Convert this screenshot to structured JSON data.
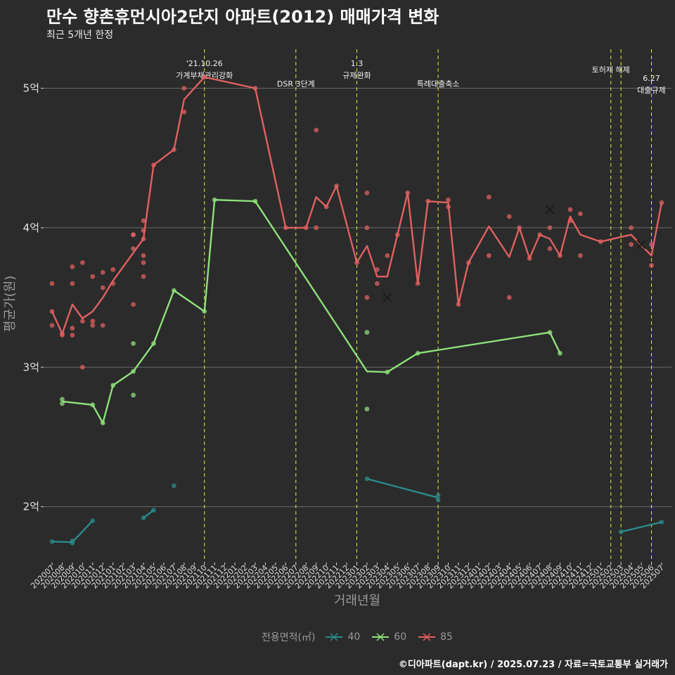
{
  "title": "만수 향촌휴먼시아2단지 아파트(2012) 매매가격 변화",
  "subtitle": "최근 5개년 한정",
  "credit": "©디아파트(dapt.kr) / 2025.07.23 / 자료=국토교통부 실거래가",
  "chart_data": {
    "type": "line",
    "xlabel": "거래년월",
    "ylabel": "평균가(원)",
    "x_categories": [
      "202007",
      "202008",
      "202009",
      "202010",
      "202011",
      "202012",
      "202101",
      "202102",
      "202103",
      "202104",
      "202105",
      "202106",
      "202107",
      "202108",
      "202109",
      "202110",
      "202111",
      "202112",
      "202201",
      "202202",
      "202203",
      "202204",
      "202205",
      "202206",
      "202207",
      "202208",
      "202209",
      "202210",
      "202211",
      "202212",
      "202301",
      "202302",
      "202303",
      "202304",
      "202305",
      "202306",
      "202307",
      "202308",
      "202309",
      "202310",
      "202311",
      "202312",
      "202401",
      "202402",
      "202403",
      "202404",
      "202405",
      "202406",
      "202407",
      "202408",
      "202409",
      "202410",
      "202411",
      "202412",
      "202501",
      "202502",
      "202503",
      "202504",
      "202505",
      "202506",
      "202507"
    ],
    "y_ticks": [
      {
        "value": 2,
        "label": "2억"
      },
      {
        "value": 3,
        "label": "3억"
      },
      {
        "value": 4,
        "label": "4억"
      },
      {
        "value": 5,
        "label": "5억"
      }
    ],
    "ylim": [
      1.6,
      5.32
    ],
    "y_unit": "억원",
    "grid": true,
    "legend": {
      "title": "전용면적(㎡)",
      "position": "bottom"
    },
    "annotations": [
      {
        "x": "202110",
        "label": "'21.10.26\n가계부채관리강화"
      },
      {
        "x": "202207",
        "label": "DSR 3단계"
      },
      {
        "x": "202301",
        "label": "1.3\n규제완화"
      },
      {
        "x": "202309",
        "label": "특례대출축소"
      },
      {
        "x": "202502",
        "label": "토허제 해제"
      },
      {
        "x": "202503",
        "label": ""
      },
      {
        "x": "202506",
        "label": "6.27\n대출규제"
      }
    ],
    "series": [
      {
        "name": "40",
        "color": "#2a8a8a",
        "segments": [
          [
            [
              "202007",
              1.75
            ],
            [
              "202009",
              1.745
            ],
            [
              "202011",
              1.9
            ]
          ],
          [
            [
              "202104",
              1.92
            ],
            [
              "202105",
              1.975
            ]
          ],
          [
            [
              "202302",
              2.2
            ],
            [
              "202309",
              2.065
            ]
          ],
          [
            [
              "202503",
              1.82
            ],
            [
              "202507",
              1.89
            ]
          ]
        ],
        "points": [
          [
            "202007",
            1.75
          ],
          [
            "202009",
            1.74
          ],
          [
            "202009",
            1.755
          ],
          [
            "202011",
            1.9
          ],
          [
            "202104",
            1.92
          ],
          [
            "202105",
            1.975
          ],
          [
            "202107",
            2.15
          ],
          [
            "202302",
            2.2
          ],
          [
            "202309",
            2.05
          ],
          [
            "202309",
            2.08
          ],
          [
            "202503",
            1.82
          ],
          [
            "202507",
            1.89
          ]
        ],
        "cancelled": []
      },
      {
        "name": "60",
        "color": "#8ee07a",
        "segments": [
          [
            [
              "202008",
              2.755
            ],
            [
              "202011",
              2.73
            ],
            [
              "202012",
              2.6
            ],
            [
              "202101",
              2.87
            ],
            [
              "202103",
              2.97
            ],
            [
              "202105",
              3.17
            ],
            [
              "202107",
              3.55
            ],
            [
              "202110",
              3.4
            ],
            [
              "202111",
              4.2
            ],
            [
              "202203",
              4.19
            ],
            [
              "202302",
              2.97
            ],
            [
              "202304",
              2.965
            ],
            [
              "202307",
              3.1
            ],
            [
              "202408",
              3.25
            ],
            [
              "202409",
              3.1
            ]
          ]
        ],
        "points": [
          [
            "202008",
            2.74
          ],
          [
            "202008",
            2.77
          ],
          [
            "202011",
            2.73
          ],
          [
            "202012",
            2.6
          ],
          [
            "202101",
            2.87
          ],
          [
            "202103",
            2.97
          ],
          [
            "202103",
            2.8
          ],
          [
            "202103",
            3.17
          ],
          [
            "202105",
            3.17
          ],
          [
            "202107",
            3.55
          ],
          [
            "202110",
            3.4
          ],
          [
            "202111",
            4.2
          ],
          [
            "202203",
            4.19
          ],
          [
            "202302",
            3.25
          ],
          [
            "202302",
            2.7
          ],
          [
            "202304",
            2.965
          ],
          [
            "202307",
            3.1
          ],
          [
            "202408",
            3.25
          ],
          [
            "202409",
            3.1
          ]
        ],
        "cancelled": []
      },
      {
        "name": "85",
        "color": "#e06060",
        "segments": [
          [
            [
              "202007",
              3.4
            ],
            [
              "202008",
              3.24
            ],
            [
              "202009",
              3.45
            ],
            [
              "202010",
              3.35
            ],
            [
              "202011",
              3.4
            ],
            [
              "202012",
              3.5
            ],
            [
              "202101",
              3.62
            ],
            [
              "202104",
              3.92
            ],
            [
              "202105",
              4.45
            ],
            [
              "202107",
              4.56
            ],
            [
              "202108",
              4.92
            ],
            [
              "202110",
              5.08
            ],
            [
              "202203",
              5.0
            ],
            [
              "202206",
              4.0
            ],
            [
              "202208",
              4.0
            ],
            [
              "202209",
              4.22
            ],
            [
              "202210",
              4.15
            ],
            [
              "202211",
              4.3
            ],
            [
              "202301",
              3.75
            ],
            [
              "202302",
              3.87
            ],
            [
              "202303",
              3.65
            ],
            [
              "202304",
              3.65
            ],
            [
              "202305",
              3.95
            ],
            [
              "202306",
              4.25
            ],
            [
              "202307",
              3.6
            ],
            [
              "202308",
              4.19
            ],
            [
              "202310",
              4.18
            ],
            [
              "202311",
              3.45
            ],
            [
              "202312",
              3.75
            ],
            [
              "202402",
              4.01
            ],
            [
              "202404",
              3.79
            ],
            [
              "202405",
              4.0
            ],
            [
              "202406",
              3.78
            ],
            [
              "202407",
              3.95
            ],
            [
              "202408",
              3.92
            ],
            [
              "202409",
              3.8
            ],
            [
              "202410",
              4.08
            ],
            [
              "202411",
              3.95
            ],
            [
              "202501",
              3.9
            ],
            [
              "202504",
              3.95
            ],
            [
              "202506",
              3.8
            ],
            [
              "202507",
              4.18
            ]
          ]
        ],
        "points": [
          [
            "202007",
            3.6
          ],
          [
            "202007",
            3.4
          ],
          [
            "202007",
            3.3
          ],
          [
            "202008",
            3.24
          ],
          [
            "202008",
            3.23
          ],
          [
            "202009",
            3.72
          ],
          [
            "202009",
            3.6
          ],
          [
            "202009",
            3.28
          ],
          [
            "202009",
            3.23
          ],
          [
            "202010",
            3.75
          ],
          [
            "202010",
            3.33
          ],
          [
            "202010",
            3.0
          ],
          [
            "202011",
            3.65
          ],
          [
            "202011",
            3.33
          ],
          [
            "202011",
            3.3
          ],
          [
            "202012",
            3.68
          ],
          [
            "202012",
            3.57
          ],
          [
            "202012",
            3.3
          ],
          [
            "202101",
            3.7
          ],
          [
            "202101",
            3.6
          ],
          [
            "202103",
            3.95
          ],
          [
            "202103",
            3.95
          ],
          [
            "202103",
            3.85
          ],
          [
            "202103",
            3.45
          ],
          [
            "202104",
            4.05
          ],
          [
            "202104",
            3.98
          ],
          [
            "202104",
            3.92
          ],
          [
            "202104",
            3.8
          ],
          [
            "202104",
            3.75
          ],
          [
            "202104",
            3.65
          ],
          [
            "202105",
            4.45
          ],
          [
            "202107",
            4.56
          ],
          [
            "202108",
            5.0
          ],
          [
            "202108",
            4.83
          ],
          [
            "202110",
            5.08
          ],
          [
            "202203",
            5.0
          ],
          [
            "202206",
            4.0
          ],
          [
            "202208",
            4.0
          ],
          [
            "202209",
            4.7
          ],
          [
            "202209",
            4.0
          ],
          [
            "202210",
            4.15
          ],
          [
            "202211",
            4.3
          ],
          [
            "202301",
            3.75
          ],
          [
            "202302",
            4.25
          ],
          [
            "202302",
            4.0
          ],
          [
            "202302",
            3.5
          ],
          [
            "202303",
            3.7
          ],
          [
            "202303",
            3.6
          ],
          [
            "202304",
            3.8
          ],
          [
            "202305",
            3.95
          ],
          [
            "202306",
            4.25
          ],
          [
            "202307",
            3.6
          ],
          [
            "202308",
            4.19
          ],
          [
            "202310",
            4.2
          ],
          [
            "202310",
            4.15
          ],
          [
            "202311",
            3.45
          ],
          [
            "202312",
            3.75
          ],
          [
            "202402",
            4.22
          ],
          [
            "202402",
            3.8
          ],
          [
            "202404",
            4.08
          ],
          [
            "202404",
            3.5
          ],
          [
            "202405",
            4.0
          ],
          [
            "202406",
            3.78
          ],
          [
            "202407",
            3.95
          ],
          [
            "202408",
            4.0
          ],
          [
            "202408",
            3.85
          ],
          [
            "202409",
            3.8
          ],
          [
            "202410",
            4.13
          ],
          [
            "202410",
            4.05
          ],
          [
            "202411",
            4.1
          ],
          [
            "202411",
            3.8
          ],
          [
            "202501",
            3.9
          ],
          [
            "202504",
            4.0
          ],
          [
            "202504",
            3.88
          ],
          [
            "202506",
            3.88
          ],
          [
            "202506",
            3.73
          ],
          [
            "202507",
            4.18
          ]
        ],
        "cancelled": [
          [
            "202304",
            3.5
          ],
          [
            "202408",
            4.13
          ],
          [
            "202505",
            3.88
          ]
        ]
      }
    ]
  }
}
